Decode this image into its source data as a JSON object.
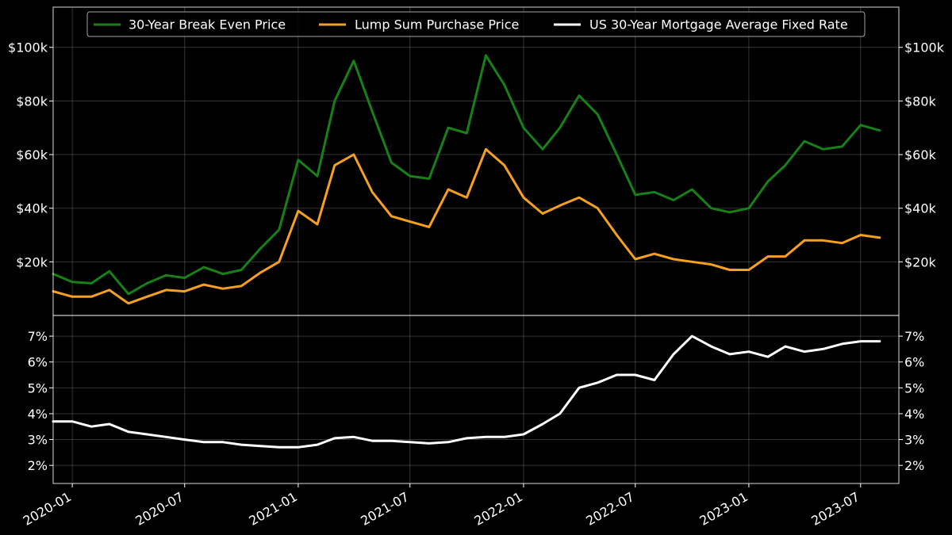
{
  "chart_data": [
    {
      "type": "line",
      "title": "",
      "xlabel": "",
      "ylabel": "",
      "ylim": [
        0,
        115000
      ],
      "y_ticks": [
        20000,
        40000,
        60000,
        80000,
        100000
      ],
      "y_tick_labels": [
        "$20k",
        "$40k",
        "$60k",
        "$80k",
        "$100k"
      ],
      "y_axis_sides": [
        "left",
        "right"
      ],
      "grid": true,
      "legend_position": "top-center",
      "x": [
        "2019-12-01",
        "2020-01-01",
        "2020-02-01",
        "2020-03-01",
        "2020-04-01",
        "2020-05-01",
        "2020-06-01",
        "2020-07-01",
        "2020-08-01",
        "2020-09-01",
        "2020-10-01",
        "2020-11-01",
        "2020-12-01",
        "2021-01-01",
        "2021-02-01",
        "2021-03-01",
        "2021-04-01",
        "2021-05-01",
        "2021-06-01",
        "2021-07-01",
        "2021-08-01",
        "2021-09-01",
        "2021-10-01",
        "2021-11-01",
        "2021-12-01",
        "2022-01-01",
        "2022-02-01",
        "2022-03-01",
        "2022-04-01",
        "2022-05-01",
        "2022-06-01",
        "2022-07-01",
        "2022-08-01",
        "2022-09-01",
        "2022-10-01",
        "2022-11-01",
        "2022-12-01",
        "2023-01-01",
        "2023-02-01",
        "2023-03-01",
        "2023-04-01",
        "2023-05-01",
        "2023-06-01",
        "2023-07-01",
        "2023-08-01"
      ],
      "series": [
        {
          "name": "30-Year Break Even Price",
          "color": "#178017",
          "values": [
            15500,
            12500,
            12000,
            16500,
            8000,
            12000,
            15000,
            14000,
            18000,
            15500,
            17000,
            25000,
            32000,
            58000,
            52000,
            80000,
            95000,
            76000,
            57000,
            52000,
            51000,
            70000,
            68000,
            97000,
            86000,
            70000,
            62000,
            70000,
            82000,
            75000,
            60000,
            45000,
            46000,
            43000,
            47000,
            40000,
            38500,
            40000,
            50000,
            56000,
            65000,
            62000,
            63000,
            71000,
            69000
          ]
        },
        {
          "name": "Lump Sum Purchase Price",
          "color": "#f5a020",
          "values": [
            9000,
            7000,
            7000,
            9500,
            4500,
            7000,
            9500,
            9000,
            11500,
            10000,
            11000,
            16000,
            20000,
            39000,
            34000,
            56000,
            60000,
            46000,
            37000,
            35000,
            33000,
            47000,
            44000,
            62000,
            56000,
            44000,
            38000,
            41000,
            44000,
            40000,
            30000,
            21000,
            23000,
            21000,
            20000,
            19000,
            17000,
            17000,
            22000,
            22000,
            28000,
            28000,
            27000,
            30000,
            29000
          ]
        }
      ]
    },
    {
      "type": "line",
      "title": "",
      "xlabel": "",
      "ylabel": "",
      "ylim": [
        1.3,
        7.8
      ],
      "y_ticks": [
        2,
        3,
        4,
        5,
        6,
        7
      ],
      "y_tick_labels": [
        "2%",
        "3%",
        "4%",
        "5%",
        "6%",
        "7%"
      ],
      "y_axis_sides": [
        "left",
        "right"
      ],
      "grid": true,
      "x": [
        "2019-12-01",
        "2020-01-01",
        "2020-02-01",
        "2020-03-01",
        "2020-04-01",
        "2020-05-01",
        "2020-06-01",
        "2020-07-01",
        "2020-08-01",
        "2020-09-01",
        "2020-10-01",
        "2020-11-01",
        "2020-12-01",
        "2021-01-01",
        "2021-02-01",
        "2021-03-01",
        "2021-04-01",
        "2021-05-01",
        "2021-06-01",
        "2021-07-01",
        "2021-08-01",
        "2021-09-01",
        "2021-10-01",
        "2021-11-01",
        "2021-12-01",
        "2022-01-01",
        "2022-02-01",
        "2022-03-01",
        "2022-04-01",
        "2022-05-01",
        "2022-06-01",
        "2022-07-01",
        "2022-08-01",
        "2022-09-01",
        "2022-10-01",
        "2022-11-01",
        "2022-12-01",
        "2023-01-01",
        "2023-02-01",
        "2023-03-01",
        "2023-04-01",
        "2023-05-01",
        "2023-06-01",
        "2023-07-01",
        "2023-08-01"
      ],
      "series": [
        {
          "name": "US 30-Year Mortgage Average Fixed Rate",
          "color": "#ffffff",
          "values": [
            3.7,
            3.7,
            3.5,
            3.6,
            3.3,
            3.2,
            3.1,
            3.0,
            2.9,
            2.9,
            2.8,
            2.75,
            2.7,
            2.7,
            2.8,
            3.05,
            3.1,
            2.95,
            2.95,
            2.9,
            2.85,
            2.9,
            3.05,
            3.1,
            3.1,
            3.2,
            3.6,
            4.0,
            5.0,
            5.2,
            5.5,
            5.5,
            5.3,
            6.3,
            7.0,
            6.6,
            6.3,
            6.4,
            6.2,
            6.6,
            6.4,
            6.5,
            6.7,
            6.8,
            6.8
          ]
        }
      ]
    }
  ],
  "x_tick_labels": [
    "2020-01",
    "2020-07",
    "2021-01",
    "2021-07",
    "2022-01",
    "2022-07",
    "2023-01",
    "2023-07"
  ],
  "x_tick_dates": [
    "2020-01-01",
    "2020-07-01",
    "2021-01-01",
    "2021-07-01",
    "2022-01-01",
    "2022-07-01",
    "2023-01-01",
    "2023-07-01"
  ],
  "x_range": [
    "2019-12-01",
    "2023-09-01"
  ]
}
